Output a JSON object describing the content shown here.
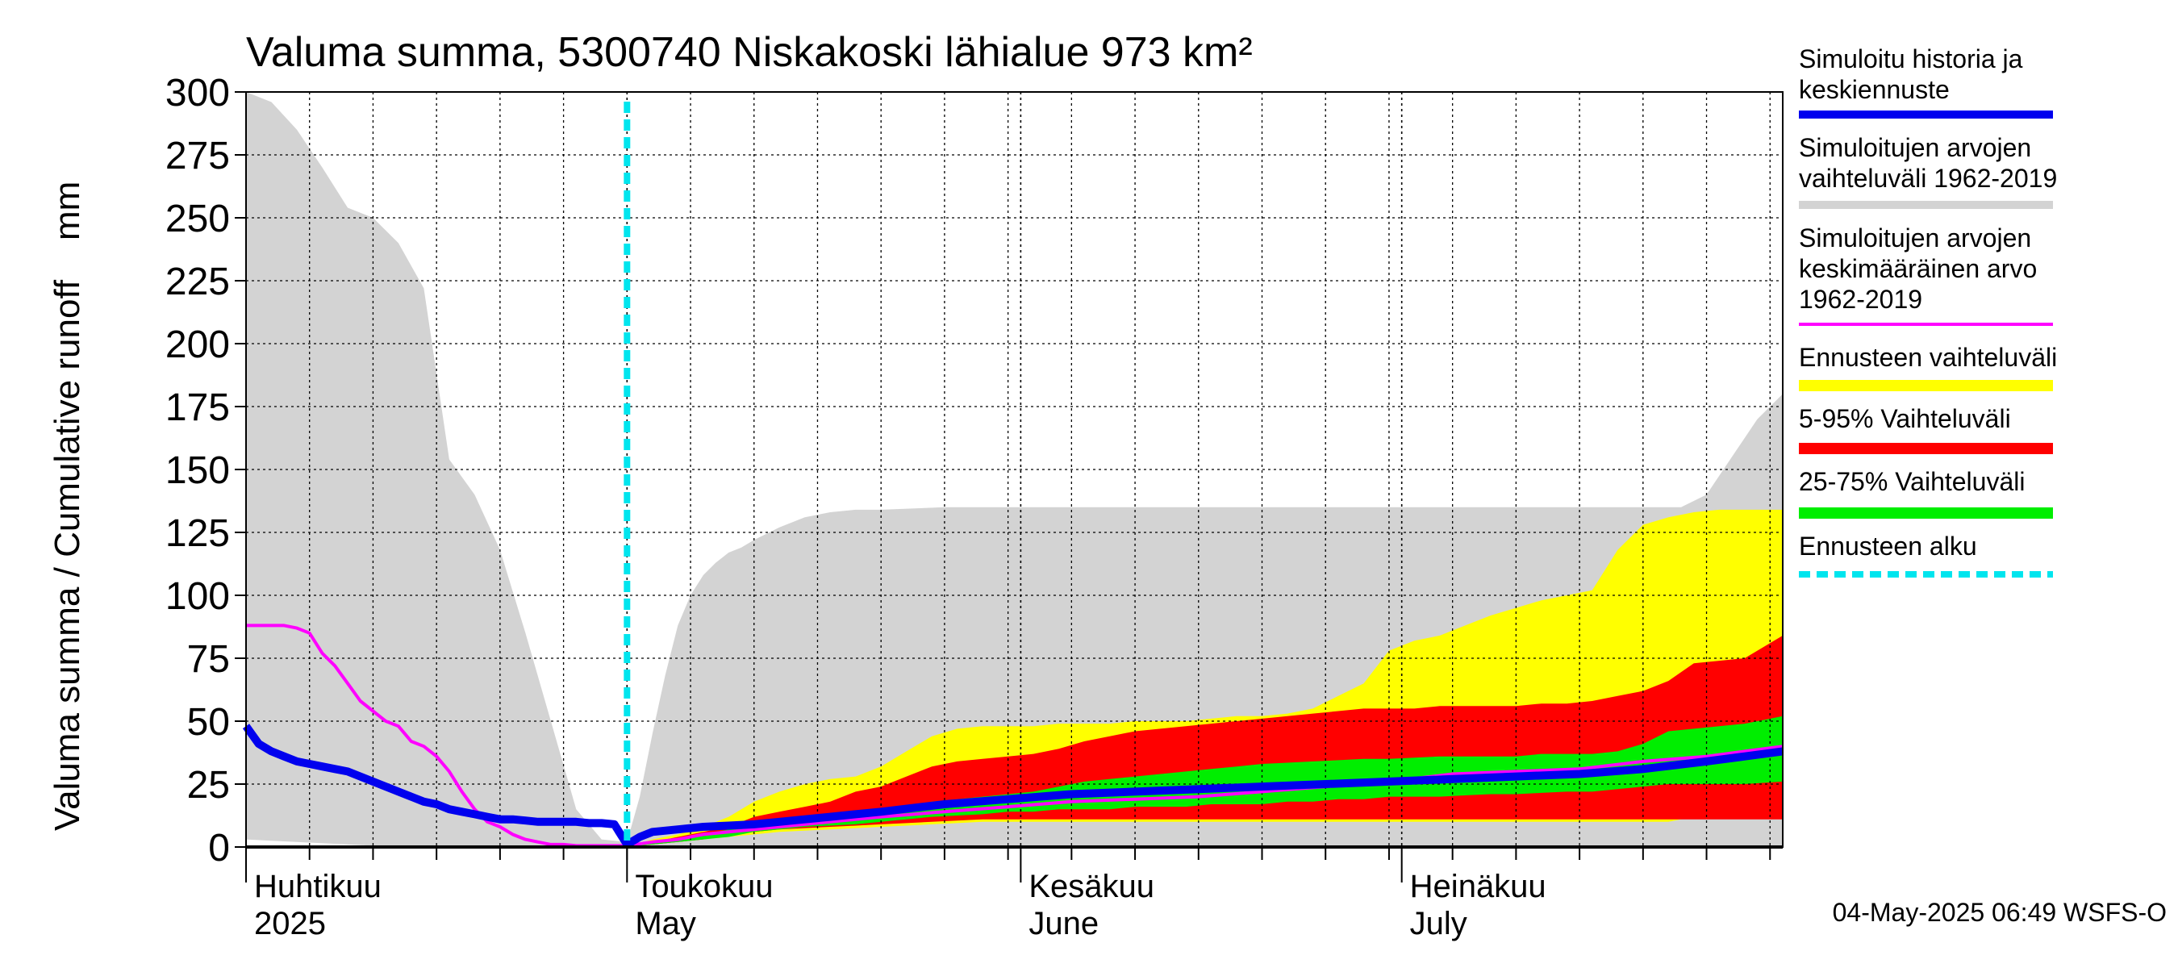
{
  "chart_data": {
    "type": "area",
    "title": "Valuma summa, 5300740 Niskakoski lähialue 973 km²",
    "ylabel": "Valuma summa / Cumulative runoff    mm",
    "ylim": [
      0,
      300
    ],
    "yticks": [
      0,
      25,
      50,
      75,
      100,
      125,
      150,
      175,
      200,
      225,
      250,
      275,
      300
    ],
    "x_range_days": [
      0,
      121
    ],
    "month_labels": [
      {
        "day": 0,
        "fi": "Huhtikuu",
        "en": "2025"
      },
      {
        "day": 30,
        "fi": "Toukokuu",
        "en": "May"
      },
      {
        "day": 61,
        "fi": "Kesäkuu",
        "en": "June"
      },
      {
        "day": 91,
        "fi": "Heinäkuu",
        "en": "July"
      }
    ],
    "grid": true,
    "forecast_start_day": 30,
    "footer": "04-May-2025 06:49 WSFS-O",
    "legend": [
      {
        "label": "Simuloitu historia ja keskiennuste",
        "color": "#0000ee"
      },
      {
        "label": "Simuloitujen arvojen vaihteluväli 1962-2019",
        "color": "#d3d3d3"
      },
      {
        "label": "Simuloitujen arvojen keskimääräinen arvo 1962-2019",
        "color": "#ff00ff"
      },
      {
        "label": "Ennusteen vaihteluväli",
        "color": "#ffff00"
      },
      {
        "label": "5-95% Vaihteluväli",
        "color": "#ff0000"
      },
      {
        "label": "25-75% Vaihteluväli",
        "color": "#00ee00"
      },
      {
        "label": "Ennusteen alku",
        "color": "#00e5ee"
      }
    ],
    "series": [
      {
        "name": "Simuloitujen arvojen vaihteluväli 1962-2019",
        "kind": "band",
        "color": "#d3d3d3",
        "x": [
          0,
          2,
          4,
          6,
          8,
          10,
          12,
          14,
          16,
          18,
          20,
          22,
          24,
          26,
          28,
          30,
          31,
          32,
          33,
          34,
          35,
          36,
          37,
          38,
          39,
          40,
          42,
          44,
          46,
          48,
          50,
          55,
          60,
          65,
          70,
          75,
          80,
          85,
          90,
          95,
          100,
          105,
          110,
          113,
          115,
          117,
          119,
          121
        ],
        "upper": [
          300,
          296,
          285,
          270,
          254,
          250,
          240,
          222,
          154,
          140,
          118,
          85,
          50,
          15,
          3,
          2,
          20,
          45,
          68,
          88,
          100,
          108,
          113,
          117,
          119,
          122,
          127,
          131,
          133,
          134,
          134,
          135,
          135,
          135,
          135,
          135,
          135,
          135,
          135,
          135,
          135,
          135,
          135,
          135,
          140,
          155,
          170,
          180
        ],
        "lower": [
          3,
          2.5,
          2,
          1.5,
          1,
          0.5,
          0,
          0,
          0,
          0,
          0,
          0,
          0,
          0,
          0,
          0,
          0,
          0,
          0,
          0,
          0,
          0,
          0,
          0,
          0,
          0,
          0,
          0,
          0,
          0,
          0,
          0,
          0,
          0,
          0,
          0,
          0,
          0,
          0,
          0,
          0,
          0,
          0,
          0,
          0,
          0,
          0,
          0
        ]
      },
      {
        "name": "Ennusteen vaihteluväli",
        "kind": "band",
        "color": "#ffff00",
        "x": [
          30,
          32,
          34,
          36,
          38,
          40,
          42,
          44,
          46,
          48,
          50,
          52,
          54,
          56,
          58,
          60,
          62,
          64,
          66,
          68,
          70,
          72,
          74,
          76,
          78,
          80,
          82,
          84,
          86,
          88,
          90,
          92,
          94,
          96,
          98,
          100,
          102,
          104,
          106,
          108,
          110,
          112,
          114,
          116,
          118,
          121
        ],
        "upper": [
          0,
          3,
          5,
          8,
          12,
          18,
          22,
          25,
          27,
          28,
          32,
          38,
          44,
          47,
          48,
          48,
          48,
          49,
          49,
          49,
          50,
          50,
          50,
          51,
          52,
          52,
          53,
          55,
          60,
          65,
          78,
          82,
          84,
          88,
          92,
          95,
          98,
          100,
          102,
          118,
          128,
          131,
          133,
          134,
          134,
          134
        ],
        "lower": [
          0,
          1,
          2,
          3,
          4,
          5,
          6,
          6.5,
          7,
          7.5,
          8,
          8.5,
          9,
          9.5,
          10,
          10,
          10,
          10,
          10,
          10,
          10,
          10,
          10,
          10,
          10,
          10,
          10,
          10,
          10,
          10,
          10,
          10,
          10,
          10,
          10,
          10,
          10,
          10,
          10,
          10,
          10,
          10,
          12,
          12,
          12,
          12
        ]
      },
      {
        "name": "5-95% Vaihteluväli",
        "kind": "band",
        "color": "#ff0000",
        "x": [
          30,
          32,
          34,
          36,
          38,
          40,
          42,
          44,
          46,
          48,
          50,
          52,
          54,
          56,
          58,
          60,
          62,
          64,
          66,
          68,
          70,
          72,
          74,
          76,
          78,
          80,
          82,
          84,
          86,
          88,
          90,
          92,
          94,
          96,
          98,
          100,
          102,
          104,
          106,
          108,
          110,
          112,
          114,
          116,
          118,
          121
        ],
        "upper": [
          0,
          2,
          4,
          6,
          8,
          12,
          14,
          16,
          18,
          22,
          24,
          28,
          32,
          34,
          35,
          36,
          37,
          39,
          42,
          44,
          46,
          47,
          48,
          49,
          50,
          51,
          52,
          53,
          54,
          55,
          55,
          55,
          56,
          56,
          56,
          56,
          57,
          57,
          58,
          60,
          62,
          66,
          73,
          74,
          75,
          84
        ],
        "lower": [
          0,
          1,
          2,
          3,
          5,
          6,
          7,
          7.5,
          8,
          8.5,
          9,
          9.5,
          10,
          10.5,
          11,
          11,
          11,
          11,
          11,
          11,
          11,
          11,
          11,
          11,
          11,
          11,
          11,
          11,
          11,
          11,
          11,
          11,
          11,
          11,
          11,
          11,
          11,
          11,
          11,
          11,
          11,
          11,
          11,
          11,
          11,
          11
        ]
      },
      {
        "name": "25-75% Vaihteluväli",
        "kind": "band",
        "color": "#00ee00",
        "x": [
          30,
          32,
          34,
          36,
          38,
          40,
          42,
          44,
          46,
          48,
          50,
          52,
          54,
          56,
          58,
          60,
          62,
          64,
          66,
          68,
          70,
          72,
          74,
          76,
          78,
          80,
          82,
          84,
          86,
          88,
          90,
          92,
          94,
          96,
          98,
          100,
          102,
          104,
          106,
          108,
          110,
          112,
          114,
          116,
          118,
          121
        ],
        "upper": [
          0,
          2,
          3,
          5,
          7,
          8,
          9,
          10,
          11,
          12,
          14,
          16,
          18,
          19,
          20,
          21,
          22,
          24,
          26,
          27,
          28,
          29,
          30,
          31,
          32,
          33,
          33.5,
          34,
          34.5,
          35,
          35,
          35.5,
          36,
          36,
          36,
          36,
          37,
          37,
          37,
          38,
          41,
          46,
          47,
          48,
          49,
          52
        ],
        "lower": [
          0,
          1,
          2,
          3,
          4,
          6,
          7,
          8,
          8.5,
          9,
          10,
          11,
          12,
          12.5,
          13,
          14,
          14,
          15,
          15,
          15,
          16,
          16,
          16,
          17,
          17,
          17,
          18,
          18,
          19,
          19,
          20,
          20,
          20,
          20.5,
          21,
          21,
          21.5,
          22,
          22,
          23,
          24,
          25,
          25,
          25,
          25,
          26
        ]
      },
      {
        "name": "Simuloitujen arvojen keskimääräinen arvo 1962-2019",
        "kind": "line",
        "color": "#ff00ff",
        "x": [
          0,
          1,
          2,
          3,
          4,
          5,
          6,
          7,
          8,
          9,
          10,
          11,
          12,
          13,
          14,
          15,
          16,
          17,
          18,
          19,
          20,
          21,
          22,
          23,
          24,
          25,
          26,
          27,
          28,
          29,
          30,
          32,
          34,
          36,
          38,
          40,
          42,
          44,
          46,
          48,
          50,
          55,
          60,
          65,
          70,
          75,
          80,
          85,
          90,
          95,
          100,
          105,
          110,
          115,
          118,
          121
        ],
        "y": [
          88,
          88,
          88,
          88,
          87,
          85,
          77,
          72,
          65,
          58,
          54,
          50,
          48,
          42,
          40,
          36,
          30,
          22,
          15,
          10,
          8,
          5,
          3,
          2,
          1,
          1,
          0.5,
          0.5,
          0.5,
          0.5,
          0.5,
          2,
          3,
          5,
          6,
          7,
          8,
          9,
          10,
          11,
          12,
          14,
          16,
          18,
          19,
          20,
          22,
          24,
          26,
          29,
          30,
          31,
          34,
          36,
          38,
          40
        ]
      },
      {
        "name": "Simuloitu historia ja keskiennuste",
        "kind": "line",
        "color": "#0000ee",
        "x": [
          0,
          1,
          2,
          3,
          4,
          5,
          6,
          7,
          8,
          9,
          10,
          11,
          12,
          13,
          14,
          15,
          16,
          17,
          18,
          19,
          20,
          21,
          22,
          23,
          24,
          25,
          26,
          27,
          28,
          29,
          30,
          31,
          32,
          34,
          36,
          38,
          40,
          42,
          44,
          46,
          48,
          50,
          55,
          60,
          65,
          70,
          75,
          80,
          85,
          90,
          95,
          100,
          105,
          110,
          115,
          118,
          121
        ],
        "y": [
          48,
          41,
          38,
          36,
          34,
          33,
          32,
          31,
          30,
          28,
          26,
          24,
          22,
          20,
          18,
          17,
          15,
          14,
          13,
          12,
          11,
          11,
          10.5,
          10,
          10,
          10,
          10,
          9.5,
          9.5,
          9,
          1,
          4,
          6,
          7,
          8,
          8.5,
          9,
          10,
          11,
          12,
          13,
          14,
          17,
          19,
          21,
          22,
          23,
          24,
          25,
          26,
          27,
          28,
          29,
          31,
          34,
          36,
          38
        ]
      }
    ]
  }
}
